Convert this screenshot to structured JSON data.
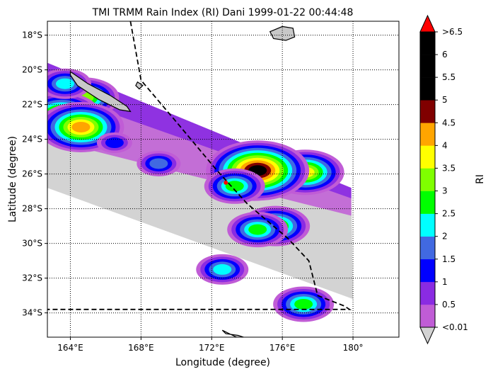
{
  "chart_data": {
    "type": "heatmap",
    "title": "TMI TRMM Rain Index (RI) Dani 1999-01-22 00:44:48",
    "xlabel": "Longitude (degree)",
    "ylabel": "Latitude (degree)",
    "xlim": [
      162.7,
      182.6
    ],
    "ylim": [
      -35.4,
      -17.2
    ],
    "xticks": [
      164,
      168,
      172,
      176,
      180
    ],
    "xtick_labels": [
      "164°E",
      "168°E",
      "172°E",
      "176°E",
      "180°"
    ],
    "yticks": [
      -18,
      -20,
      -22,
      -24,
      -26,
      -28,
      -30,
      -32,
      -34
    ],
    "ytick_labels": [
      "18°S",
      "20°S",
      "22°S",
      "24°S",
      "26°S",
      "28°S",
      "30°S",
      "32°S",
      "34°S"
    ],
    "grid": true,
    "colorbar": {
      "label": "RI",
      "tick_labels": [
        "<0.01",
        "0.5",
        "1",
        "1.5",
        "2",
        "2.5",
        "3",
        "3.5",
        "4",
        "4.5",
        "5",
        "5.5",
        "6",
        ">6.5"
      ],
      "colors": [
        "#c05cd6",
        "#8a2be2",
        "#0000ff",
        "#4169e1",
        "#00ffff",
        "#00ff00",
        "#7fff00",
        "#ffff00",
        "#ffa500",
        "#800000",
        "#000000",
        "#000000",
        "#000000"
      ],
      "under_color": "#d3d3d3",
      "over_color": "#ff0000"
    },
    "swath": {
      "corners": [
        [
          162.7,
          -19.6
        ],
        [
          179.9,
          -26.8
        ],
        [
          180.0,
          -33.2
        ],
        [
          162.7,
          -26.8
        ]
      ]
    },
    "track": [
      [
        167.4,
        -17.2
      ],
      [
        168.0,
        -20.6
      ],
      [
        170.0,
        -23.0
      ],
      [
        172.3,
        -25.8
      ],
      [
        174.0,
        -27.7
      ],
      [
        176.3,
        -29.7
      ],
      [
        177.5,
        -31.0
      ],
      [
        178.0,
        -33.0
      ],
      [
        179.5,
        -33.6
      ],
      [
        179.8,
        -33.8
      ],
      [
        162.7,
        -33.8
      ]
    ],
    "storm_center": [
      172.8,
      -26.5
    ],
    "rain_cells": [
      {
        "lon": 177.3,
        "lat": -25.9,
        "ri": 3.5
      },
      {
        "lon": 174.4,
        "lat": -26.1,
        "ri": 4.0
      },
      {
        "lon": 174.6,
        "lat": -25.8,
        "ri": 5.0
      },
      {
        "lon": 173.3,
        "lat": -26.7,
        "ri": 2.5
      },
      {
        "lon": 175.6,
        "lat": -29.0,
        "ri": 3.0
      },
      {
        "lon": 174.6,
        "lat": -29.2,
        "ri": 2.5
      },
      {
        "lon": 172.6,
        "lat": -31.5,
        "ri": 2.0
      },
      {
        "lon": 164.8,
        "lat": -21.6,
        "ri": 3.0
      },
      {
        "lon": 163.5,
        "lat": -22.6,
        "ri": 3.5
      },
      {
        "lon": 164.6,
        "lat": -23.3,
        "ri": 4.0
      },
      {
        "lon": 163.7,
        "lat": -20.8,
        "ri": 2.0
      },
      {
        "lon": 177.2,
        "lat": -33.5,
        "ri": 2.5
      },
      {
        "lon": 169.0,
        "lat": -25.4,
        "ri": 1.5
      },
      {
        "lon": 166.5,
        "lat": -24.2,
        "ri": 1.0
      }
    ],
    "coastlines": [
      [
        [
          164.0,
          -20.1
        ],
        [
          165.0,
          -20.8
        ],
        [
          166.3,
          -21.5
        ],
        [
          167.2,
          -22.1
        ],
        [
          167.4,
          -22.4
        ],
        [
          166.8,
          -22.3
        ],
        [
          165.6,
          -21.7
        ],
        [
          164.4,
          -20.9
        ],
        [
          164.0,
          -20.3
        ]
      ],
      [
        [
          167.8,
          -20.7
        ],
        [
          168.1,
          -20.9
        ],
        [
          167.9,
          -21.1
        ],
        [
          167.7,
          -20.9
        ]
      ],
      [
        [
          175.3,
          -17.8
        ],
        [
          176.0,
          -17.5
        ],
        [
          176.6,
          -17.6
        ],
        [
          176.7,
          -18.1
        ],
        [
          176.2,
          -18.3
        ],
        [
          175.5,
          -18.2
        ]
      ],
      [
        [
          172.6,
          -35.0
        ],
        [
          173.4,
          -35.4
        ],
        [
          174.0,
          -35.5
        ],
        [
          174.4,
          -35.6
        ],
        [
          173.5,
          -35.3
        ],
        [
          172.8,
          -35.2
        ]
      ]
    ]
  }
}
